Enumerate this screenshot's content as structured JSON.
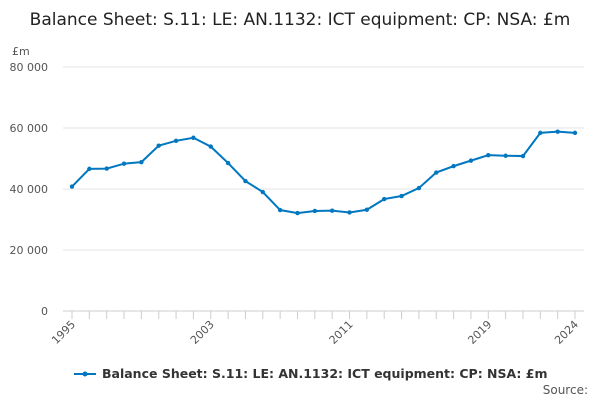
{
  "chart_data": {
    "type": "line",
    "title": "Balance Sheet: S.11: LE: AN.1132: ICT equipment: CP: NSA: £m",
    "ylabel": "£m",
    "ylim": [
      0,
      80000
    ],
    "yticks": [
      0,
      20000,
      40000,
      60000,
      80000
    ],
    "ytick_labels": [
      "0",
      "20 000",
      "40 000",
      "60 000",
      "80 000"
    ],
    "xtick_labels": [
      "1995",
      "2003",
      "2011",
      "2019",
      "2024"
    ],
    "x": [
      1995,
      1996,
      1997,
      1998,
      1999,
      2000,
      2001,
      2002,
      2003,
      2004,
      2005,
      2006,
      2007,
      2008,
      2009,
      2010,
      2011,
      2012,
      2013,
      2014,
      2015,
      2016,
      2017,
      2018,
      2019,
      2020,
      2021,
      2022,
      2023,
      2024
    ],
    "series": [
      {
        "name": "Balance Sheet: S.11: LE: AN.1132: ICT equipment: CP: NSA: £m",
        "color": "#0077c0",
        "values": [
          40800,
          46600,
          46700,
          48300,
          48800,
          54200,
          55800,
          56800,
          53900,
          48500,
          42600,
          39000,
          33100,
          32100,
          32800,
          32900,
          32300,
          33200,
          36700,
          37700,
          40300,
          45400,
          47500,
          49300,
          51100,
          50900,
          50800,
          58400,
          58800,
          58400
        ]
      }
    ],
    "legend": "bottom",
    "grid": true
  },
  "source_label": "Source:"
}
